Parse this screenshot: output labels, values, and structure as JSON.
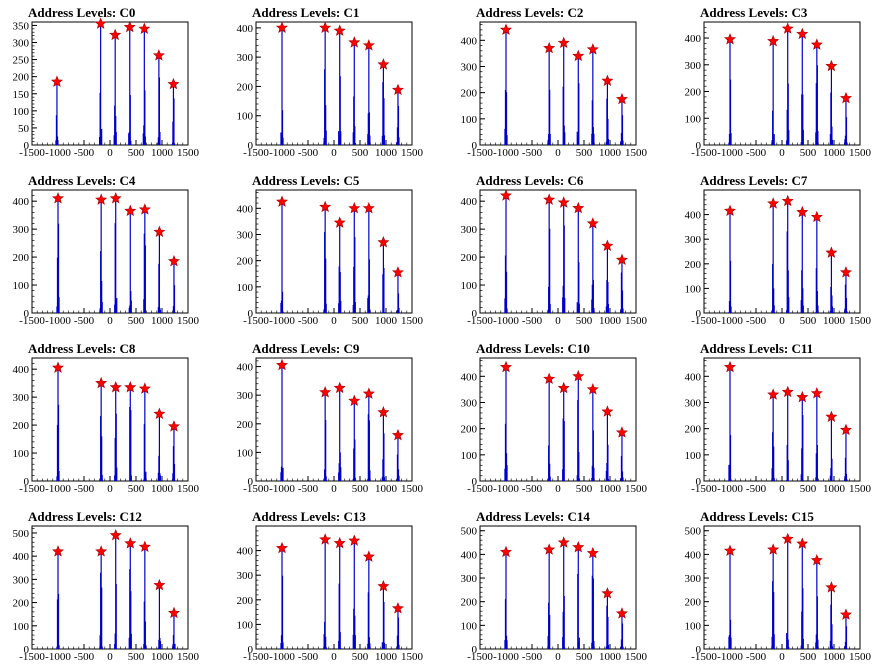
{
  "colors": {
    "bar": "#0000cc",
    "marker": "#ff0000",
    "axis": "#000000",
    "background": "#ffffff"
  },
  "chart_data": [
    {
      "type": "bar",
      "title": "Address Levels: C0",
      "xlim": [
        -1500,
        1500
      ],
      "ylim": [
        0,
        360
      ],
      "yticks": [
        0,
        50,
        100,
        150,
        200,
        250,
        300,
        350
      ],
      "xticks": [
        -1500,
        -1000,
        -500,
        0,
        500,
        1000,
        1500
      ],
      "peaks": [
        {
          "x": -1020,
          "y": 185
        },
        {
          "x": -180,
          "y": 355
        },
        {
          "x": 100,
          "y": 322
        },
        {
          "x": 380,
          "y": 345
        },
        {
          "x": 660,
          "y": 340
        },
        {
          "x": 940,
          "y": 262
        },
        {
          "x": 1220,
          "y": 178
        }
      ]
    },
    {
      "type": "bar",
      "title": "Address Levels: C1",
      "xlim": [
        -1500,
        1500
      ],
      "ylim": [
        0,
        420
      ],
      "yticks": [
        0,
        100,
        200,
        300,
        400
      ],
      "xticks": [
        -1500,
        -1000,
        -500,
        0,
        500,
        1000,
        1500
      ],
      "peaks": [
        {
          "x": -1000,
          "y": 400
        },
        {
          "x": -170,
          "y": 400
        },
        {
          "x": 110,
          "y": 390
        },
        {
          "x": 390,
          "y": 350
        },
        {
          "x": 670,
          "y": 340
        },
        {
          "x": 950,
          "y": 275
        },
        {
          "x": 1230,
          "y": 188
        }
      ]
    },
    {
      "type": "bar",
      "title": "Address Levels: C2",
      "xlim": [
        -1500,
        1500
      ],
      "ylim": [
        0,
        470
      ],
      "yticks": [
        0,
        100,
        200,
        300,
        400
      ],
      "xticks": [
        -1500,
        -1000,
        -500,
        0,
        500,
        1000,
        1500
      ],
      "peaks": [
        {
          "x": -1000,
          "y": 440
        },
        {
          "x": -170,
          "y": 370
        },
        {
          "x": 110,
          "y": 390
        },
        {
          "x": 390,
          "y": 340
        },
        {
          "x": 670,
          "y": 365
        },
        {
          "x": 950,
          "y": 245
        },
        {
          "x": 1230,
          "y": 175
        }
      ]
    },
    {
      "type": "bar",
      "title": "Address Levels: C3",
      "xlim": [
        -1500,
        1500
      ],
      "ylim": [
        0,
        460
      ],
      "yticks": [
        0,
        100,
        200,
        300,
        400
      ],
      "xticks": [
        -1500,
        -1000,
        -500,
        0,
        500,
        1000,
        1500
      ],
      "peaks": [
        {
          "x": -1000,
          "y": 395
        },
        {
          "x": -170,
          "y": 388
        },
        {
          "x": 110,
          "y": 435
        },
        {
          "x": 390,
          "y": 415
        },
        {
          "x": 670,
          "y": 375
        },
        {
          "x": 950,
          "y": 295
        },
        {
          "x": 1230,
          "y": 175
        }
      ]
    },
    {
      "type": "bar",
      "title": "Address Levels: C4",
      "xlim": [
        -1500,
        1500
      ],
      "ylim": [
        0,
        440
      ],
      "yticks": [
        0,
        100,
        200,
        300,
        400
      ],
      "xticks": [
        -1500,
        -1000,
        -500,
        0,
        500,
        1000,
        1500
      ],
      "peaks": [
        {
          "x": -1000,
          "y": 410
        },
        {
          "x": -170,
          "y": 405
        },
        {
          "x": 110,
          "y": 410
        },
        {
          "x": 390,
          "y": 365
        },
        {
          "x": 670,
          "y": 370
        },
        {
          "x": 950,
          "y": 290
        },
        {
          "x": 1230,
          "y": 185
        }
      ]
    },
    {
      "type": "bar",
      "title": "Address Levels: C5",
      "xlim": [
        -1500,
        1500
      ],
      "ylim": [
        0,
        470
      ],
      "yticks": [
        0,
        100,
        200,
        300,
        400
      ],
      "xticks": [
        -1500,
        -1000,
        -500,
        0,
        500,
        1000,
        1500
      ],
      "peaks": [
        {
          "x": -1000,
          "y": 425
        },
        {
          "x": -170,
          "y": 405
        },
        {
          "x": 110,
          "y": 345
        },
        {
          "x": 390,
          "y": 400
        },
        {
          "x": 670,
          "y": 400
        },
        {
          "x": 950,
          "y": 270
        },
        {
          "x": 1230,
          "y": 155
        }
      ]
    },
    {
      "type": "bar",
      "title": "Address Levels: C6",
      "xlim": [
        -1500,
        1500
      ],
      "ylim": [
        0,
        440
      ],
      "yticks": [
        0,
        100,
        200,
        300,
        400
      ],
      "xticks": [
        -1500,
        -1000,
        -500,
        0,
        500,
        1000,
        1500
      ],
      "peaks": [
        {
          "x": -1000,
          "y": 420
        },
        {
          "x": -170,
          "y": 405
        },
        {
          "x": 110,
          "y": 395
        },
        {
          "x": 390,
          "y": 375
        },
        {
          "x": 670,
          "y": 320
        },
        {
          "x": 950,
          "y": 240
        },
        {
          "x": 1230,
          "y": 190
        }
      ]
    },
    {
      "type": "bar",
      "title": "Address Levels: C7",
      "xlim": [
        -1500,
        1500
      ],
      "ylim": [
        0,
        500
      ],
      "yticks": [
        0,
        100,
        200,
        300,
        400
      ],
      "xticks": [
        -1500,
        -1000,
        -500,
        0,
        500,
        1000,
        1500
      ],
      "peaks": [
        {
          "x": -1000,
          "y": 415
        },
        {
          "x": -170,
          "y": 445
        },
        {
          "x": 110,
          "y": 455
        },
        {
          "x": 390,
          "y": 410
        },
        {
          "x": 670,
          "y": 390
        },
        {
          "x": 950,
          "y": 245
        },
        {
          "x": 1230,
          "y": 165
        }
      ]
    },
    {
      "type": "bar",
      "title": "Address Levels: C8",
      "xlim": [
        -1500,
        1500
      ],
      "ylim": [
        0,
        440
      ],
      "yticks": [
        0,
        100,
        200,
        300,
        400
      ],
      "xticks": [
        -1500,
        -1000,
        -500,
        0,
        500,
        1000,
        1500
      ],
      "peaks": [
        {
          "x": -1000,
          "y": 405
        },
        {
          "x": -170,
          "y": 350
        },
        {
          "x": 110,
          "y": 335
        },
        {
          "x": 390,
          "y": 335
        },
        {
          "x": 670,
          "y": 330
        },
        {
          "x": 950,
          "y": 240
        },
        {
          "x": 1230,
          "y": 195
        }
      ]
    },
    {
      "type": "bar",
      "title": "Address Levels: C9",
      "xlim": [
        -1500,
        1500
      ],
      "ylim": [
        0,
        430
      ],
      "yticks": [
        0,
        100,
        200,
        300,
        400
      ],
      "xticks": [
        -1500,
        -1000,
        -500,
        0,
        500,
        1000,
        1500
      ],
      "peaks": [
        {
          "x": -1000,
          "y": 405
        },
        {
          "x": -170,
          "y": 310
        },
        {
          "x": 110,
          "y": 325
        },
        {
          "x": 390,
          "y": 280
        },
        {
          "x": 670,
          "y": 305
        },
        {
          "x": 950,
          "y": 240
        },
        {
          "x": 1230,
          "y": 160
        }
      ]
    },
    {
      "type": "bar",
      "title": "Address Levels: C10",
      "xlim": [
        -1500,
        1500
      ],
      "ylim": [
        0,
        470
      ],
      "yticks": [
        0,
        100,
        200,
        300,
        400
      ],
      "xticks": [
        -1500,
        -1000,
        -500,
        0,
        500,
        1000,
        1500
      ],
      "peaks": [
        {
          "x": -1000,
          "y": 435
        },
        {
          "x": -170,
          "y": 390
        },
        {
          "x": 110,
          "y": 355
        },
        {
          "x": 390,
          "y": 400
        },
        {
          "x": 670,
          "y": 350
        },
        {
          "x": 950,
          "y": 265
        },
        {
          "x": 1230,
          "y": 185
        }
      ]
    },
    {
      "type": "bar",
      "title": "Address Levels: C11",
      "xlim": [
        -1500,
        1500
      ],
      "ylim": [
        0,
        470
      ],
      "yticks": [
        0,
        100,
        200,
        300,
        400
      ],
      "xticks": [
        -1500,
        -1000,
        -500,
        0,
        500,
        1000,
        1500
      ],
      "peaks": [
        {
          "x": -1000,
          "y": 435
        },
        {
          "x": -170,
          "y": 330
        },
        {
          "x": 110,
          "y": 340
        },
        {
          "x": 390,
          "y": 320
        },
        {
          "x": 670,
          "y": 335
        },
        {
          "x": 950,
          "y": 245
        },
        {
          "x": 1230,
          "y": 195
        }
      ]
    },
    {
      "type": "bar",
      "title": "Address Levels: C12",
      "xlim": [
        -1500,
        1500
      ],
      "ylim": [
        0,
        530
      ],
      "yticks": [
        0,
        100,
        200,
        300,
        400,
        500
      ],
      "xticks": [
        -1500,
        -1000,
        -500,
        0,
        500,
        1000,
        1500
      ],
      "peaks": [
        {
          "x": -1000,
          "y": 420
        },
        {
          "x": -170,
          "y": 420
        },
        {
          "x": 110,
          "y": 490
        },
        {
          "x": 390,
          "y": 455
        },
        {
          "x": 670,
          "y": 440
        },
        {
          "x": 950,
          "y": 275
        },
        {
          "x": 1230,
          "y": 155
        }
      ]
    },
    {
      "type": "bar",
      "title": "Address Levels: C13",
      "xlim": [
        -1500,
        1500
      ],
      "ylim": [
        0,
        500
      ],
      "yticks": [
        0,
        100,
        200,
        300,
        400
      ],
      "xticks": [
        -1500,
        -1000,
        -500,
        0,
        500,
        1000,
        1500
      ],
      "peaks": [
        {
          "x": -1000,
          "y": 410
        },
        {
          "x": -170,
          "y": 445
        },
        {
          "x": 110,
          "y": 430
        },
        {
          "x": 390,
          "y": 440
        },
        {
          "x": 670,
          "y": 375
        },
        {
          "x": 950,
          "y": 255
        },
        {
          "x": 1230,
          "y": 165
        }
      ]
    },
    {
      "type": "bar",
      "title": "Address Levels: C14",
      "xlim": [
        -1500,
        1500
      ],
      "ylim": [
        0,
        520
      ],
      "yticks": [
        0,
        100,
        200,
        300,
        400,
        500
      ],
      "xticks": [
        -1500,
        -1000,
        -500,
        0,
        500,
        1000,
        1500
      ],
      "peaks": [
        {
          "x": -1000,
          "y": 410
        },
        {
          "x": -170,
          "y": 420
        },
        {
          "x": 110,
          "y": 450
        },
        {
          "x": 390,
          "y": 430
        },
        {
          "x": 670,
          "y": 405
        },
        {
          "x": 950,
          "y": 235
        },
        {
          "x": 1230,
          "y": 150
        }
      ]
    },
    {
      "type": "bar",
      "title": "Address Levels: C15",
      "xlim": [
        -1500,
        1500
      ],
      "ylim": [
        0,
        520
      ],
      "yticks": [
        0,
        100,
        200,
        300,
        400,
        500
      ],
      "xticks": [
        -1500,
        -1000,
        -500,
        0,
        500,
        1000,
        1500
      ],
      "peaks": [
        {
          "x": -1000,
          "y": 415
        },
        {
          "x": -170,
          "y": 420
        },
        {
          "x": 110,
          "y": 465
        },
        {
          "x": 390,
          "y": 445
        },
        {
          "x": 670,
          "y": 375
        },
        {
          "x": 950,
          "y": 260
        },
        {
          "x": 1230,
          "y": 145
        }
      ]
    }
  ]
}
